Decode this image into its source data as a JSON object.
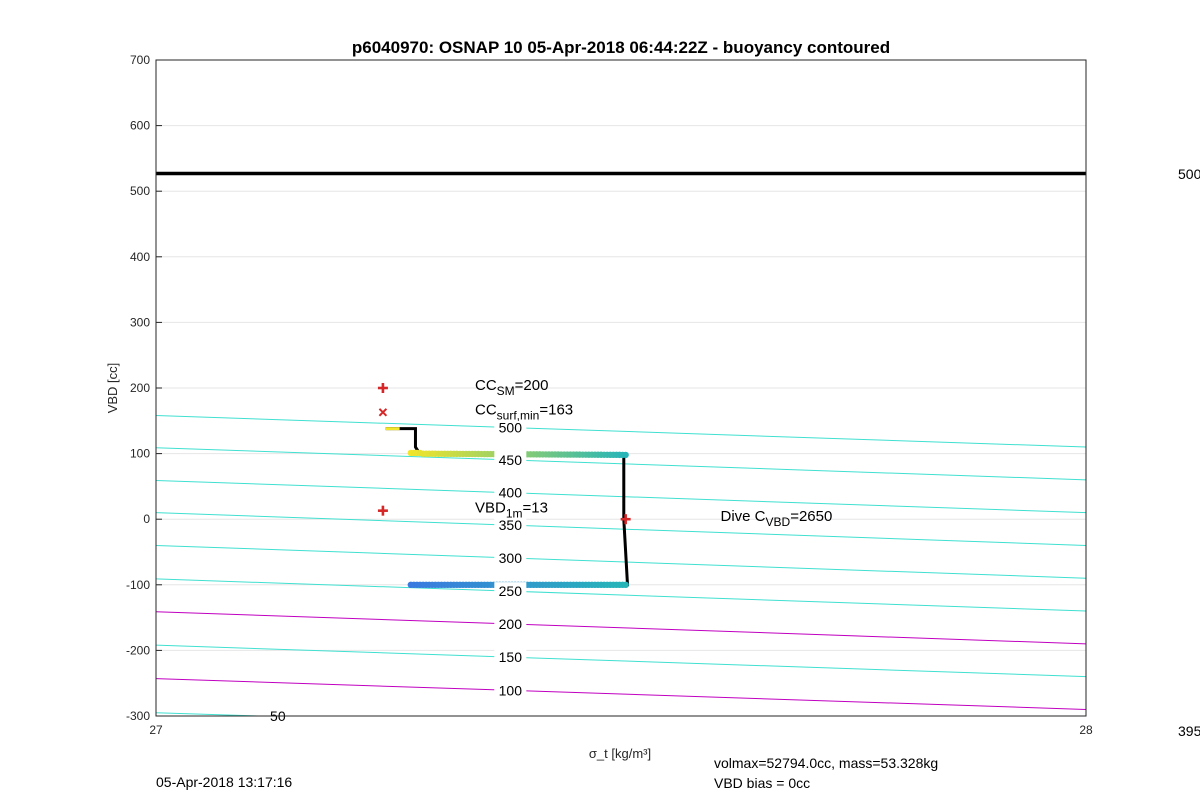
{
  "chart_data": {
    "type": "scatter",
    "title": "p6040970: OSNAP 10 05-Apr-2018 06:44:22Z - buoyancy contoured",
    "xlabel": "σ_t [kg/m³]",
    "ylabel": "VBD [cc]",
    "xlim": [
      27,
      28
    ],
    "ylim": [
      -300,
      700
    ],
    "x_ticks": [
      "27",
      "28"
    ],
    "y_ticks": [
      "-300",
      "-200",
      "-100",
      "0",
      "100",
      "200",
      "300",
      "400",
      "500",
      "600",
      "700"
    ],
    "grid": true,
    "hline": {
      "y": 527
    },
    "right_labels": [
      "500",
      "395"
    ],
    "markers": [
      {
        "x": 27.244,
        "y": 200,
        "shape": "plus",
        "color": "#d62728"
      },
      {
        "x": 27.244,
        "y": 163,
        "shape": "x",
        "color": "#d62728"
      },
      {
        "x": 27.244,
        "y": 13,
        "shape": "plus",
        "color": "#d62728"
      },
      {
        "x": 27.505,
        "y": 0,
        "shape": "plus",
        "color": "#d62728"
      }
    ],
    "annotations": [
      {
        "id": "cc_sm",
        "text": "CC",
        "sub": "SM",
        "tail": "=200",
        "x": 27.343,
        "y": 200
      },
      {
        "id": "cc_surf",
        "text": "CC",
        "sub": "surf,min",
        "tail": "=163",
        "x": 27.343,
        "y": 163
      },
      {
        "id": "vbd_1m",
        "text": "VBD",
        "sub": "1m",
        "tail": "=13",
        "x": 27.343,
        "y": 13
      },
      {
        "id": "dive_c",
        "text": "Dive C",
        "sub": "VBD",
        "tail": "=2650",
        "x": 27.607,
        "y": 0
      }
    ],
    "contours": [
      {
        "level": "50",
        "color": "#40e0d0",
        "y0": -295,
        "y1": -340,
        "label_pos": "left",
        "label_x": 27.131,
        "label_y": -300
      },
      {
        "level": "100",
        "color": "#c000c0",
        "y0": -243,
        "y1": -290,
        "label_pos": "both",
        "label_x": 27.381
      },
      {
        "level": "150",
        "color": "#40e0d0",
        "y0": -192,
        "y1": -240,
        "label_pos": "both",
        "label_x": 27.381
      },
      {
        "level": "200",
        "color": "#c000c0",
        "y0": -141,
        "y1": -190,
        "label_pos": "both",
        "label_x": 27.381
      },
      {
        "level": "250",
        "color": "#40e0d0",
        "y0": -91,
        "y1": -140,
        "label_pos": "both",
        "label_x": 27.381
      },
      {
        "level": "300",
        "color": "#40e0d0",
        "y0": -40,
        "y1": -90,
        "label_pos": "both",
        "label_x": 27.381
      },
      {
        "level": "350",
        "color": "#40e0d0",
        "y0": 10,
        "y1": -40,
        "label_pos": "both",
        "label_x": 27.381
      },
      {
        "level": "400",
        "color": "#40e0d0",
        "y0": 59,
        "y1": 10,
        "label_pos": "both",
        "label_x": 27.381
      },
      {
        "level": "450",
        "color": "#40e0d0",
        "y0": 109,
        "y1": 60,
        "label_pos": "both",
        "label_x": 27.381
      },
      {
        "level": "500",
        "color": "#40e0d0",
        "y0": 158,
        "y1": 110,
        "label_pos": "both",
        "label_x": 27.381
      }
    ],
    "profile_path": [
      [
        27.247,
        138
      ],
      [
        27.279,
        138
      ],
      [
        27.279,
        110
      ],
      [
        27.283,
        101
      ],
      [
        27.503,
        98
      ],
      [
        27.503,
        0
      ],
      [
        27.507,
        -100
      ],
      [
        27.274,
        -100
      ]
    ],
    "down_segment": {
      "x_start": 27.274,
      "x_end": 27.505,
      "y": 100,
      "color_start": "#f2e52a",
      "color_end": "#27b5b8"
    },
    "up_segment": {
      "x_start": 27.274,
      "x_end": 27.505,
      "y": -100,
      "color_start": "#3a7ae0",
      "color_end": "#27b5b8"
    }
  },
  "footer": {
    "timestamp": "05-Apr-2018 13:17:16",
    "volmax_line": "volmax=52794.0cc, mass=53.328kg",
    "bias_line": "VBD bias = 0cc"
  }
}
